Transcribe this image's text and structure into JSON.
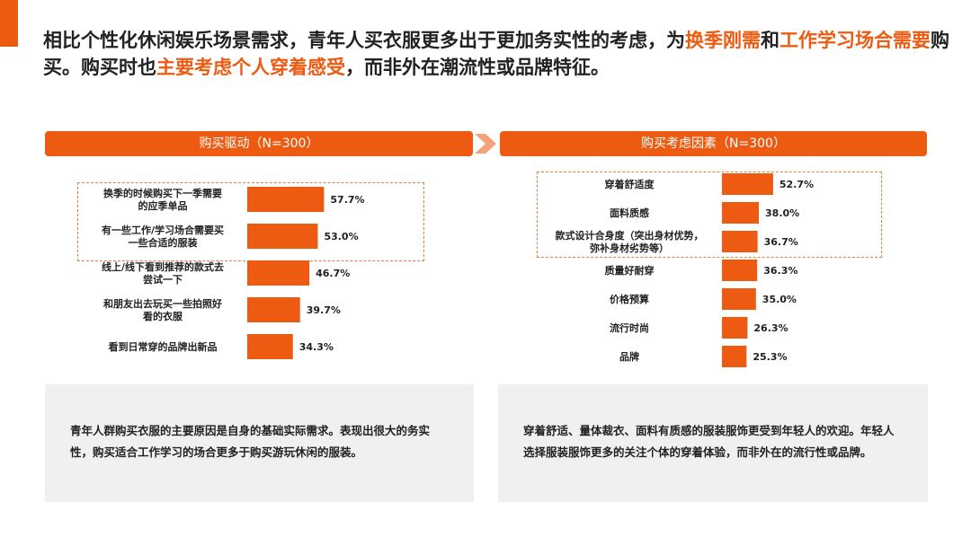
{
  "headline": {
    "p1": "相比个性化休闲娱乐场景需求，青年人买衣服更多出于更加务实性的考虑，为",
    "h1": "换季刚需",
    "p2": "和",
    "h2": "工作学习场合需要",
    "p3": "购买。购买时也",
    "h3": "主要考虑个人穿着感受",
    "p4": "，而非外在潮流性或品牌特征。"
  },
  "colors": {
    "accent": "#ec5b11",
    "summary_bg": "#f0f0f0",
    "dash": "#ec7a3c"
  },
  "chart_data": [
    {
      "type": "bar",
      "orientation": "horizontal",
      "title": "购买驱动（N=300）",
      "categories": [
        [
          "换季的时候购买下一季需要",
          "的应季单品"
        ],
        [
          "有一些工作/学习场合需要买",
          "一些合适的服装"
        ],
        [
          "线上/线下看到推荐的款式去",
          "尝试一下"
        ],
        [
          "和朋友出去玩买一些拍照好",
          "看的衣服"
        ],
        [
          "看到日常穿的品牌出新品"
        ]
      ],
      "values": [
        57.7,
        53.0,
        46.7,
        39.7,
        34.3
      ],
      "labels": [
        "57.7%",
        "53.0%",
        "46.7%",
        "39.7%",
        "34.3%"
      ],
      "unit": "%",
      "highlighted_categories": 2
    },
    {
      "type": "bar",
      "orientation": "horizontal",
      "title": "购买考虑因素（N=300）",
      "categories": [
        [
          "穿着舒适度"
        ],
        [
          "面料质感"
        ],
        [
          "款式设计合身度（突出身材优势，",
          "弥补身材劣势等）"
        ],
        [
          "质量好耐穿"
        ],
        [
          "价格预算"
        ],
        [
          "流行时尚"
        ],
        [
          "品牌"
        ]
      ],
      "values": [
        52.7,
        38.0,
        36.7,
        36.3,
        35.0,
        26.3,
        25.3
      ],
      "labels": [
        "52.7%",
        "38.0%",
        "36.7%",
        "36.3%",
        "35.0%",
        "26.3%",
        "25.3%"
      ],
      "unit": "%",
      "highlighted_categories": 3
    }
  ],
  "summaries": {
    "left": "青年人群购买衣服的主要原因是自身的基础实际需求。表现出很大的务实性，购买适合工作学习的场合更多于购买游玩休闲的服装。",
    "right": "穿着舒适、量体裁衣、面料有质感的服装服饰更受到年轻人的欢迎。年轻人选择服装服饰更多的关注个体的穿着体验，而非外在的流行性或品牌。"
  }
}
